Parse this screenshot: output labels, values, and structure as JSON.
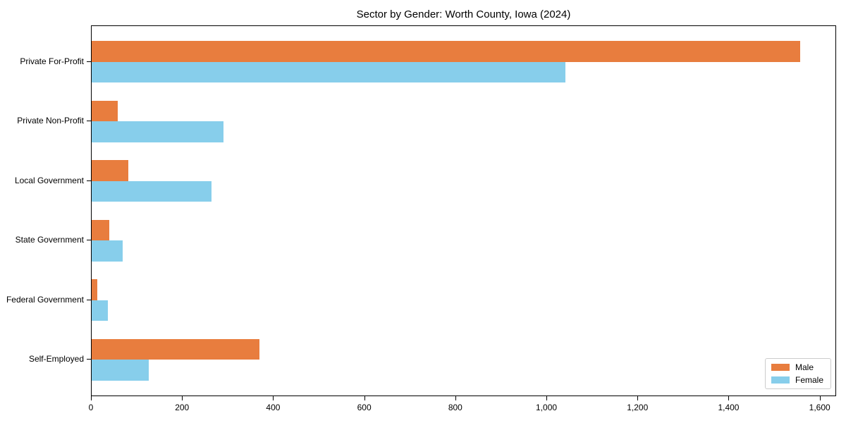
{
  "title": "Sector by Gender: Worth County, Iowa (2024)",
  "chart_data": {
    "type": "bar",
    "orientation": "horizontal",
    "title": "Sector by Gender: Worth County, Iowa (2024)",
    "categories": [
      "Private For-Profit",
      "Private Non-Profit",
      "Local Government",
      "State Government",
      "Federal Government",
      "Self-Employed"
    ],
    "series": [
      {
        "name": "Male",
        "color": "#e87d3e",
        "values": [
          1555,
          57,
          80,
          39,
          12,
          368
        ]
      },
      {
        "name": "Female",
        "color": "#87ceeb",
        "values": [
          1040,
          290,
          263,
          68,
          36,
          125
        ]
      }
    ],
    "xlabel": "",
    "ylabel": "",
    "xlim": [
      0,
      1633
    ],
    "xticks": [
      0,
      200,
      400,
      600,
      800,
      1000,
      1200,
      1400,
      1600
    ],
    "xtick_labels": [
      "0",
      "200",
      "400",
      "600",
      "800",
      "1,000",
      "1,200",
      "1,400",
      "1,600"
    ],
    "grid": false,
    "legend_position": "lower right",
    "bar_height_fraction": 0.35
  }
}
